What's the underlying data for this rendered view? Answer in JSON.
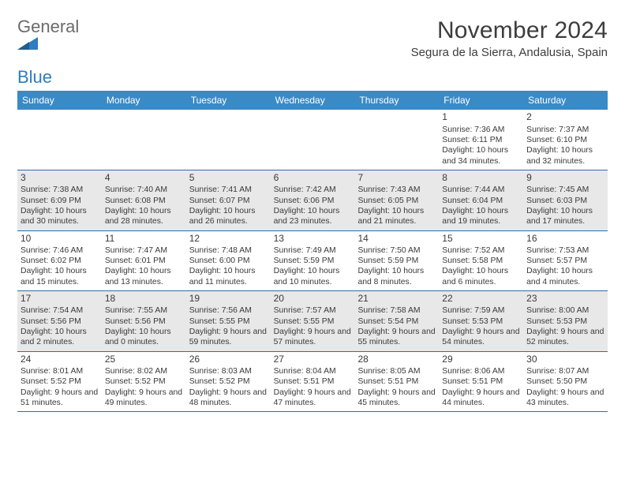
{
  "brand": {
    "text_gray": "General",
    "text_blue": "Blue",
    "icon_fill": "#2e7cc2"
  },
  "title": "November 2024",
  "location": "Segura de la Sierra, Andalusia, Spain",
  "colors": {
    "header_bg": "#3a8ac6",
    "header_text": "#ffffff",
    "border": "#2e6ea8",
    "shaded_bg": "#e8e8e8",
    "text": "#3a3a3a",
    "page_bg": "#ffffff"
  },
  "layout": {
    "columns": 7,
    "rows": 5,
    "first_weekday_index": 5,
    "days_in_month": 30,
    "day_fontsize": 12,
    "detail_fontsize": 10.4
  },
  "weekdays": [
    "Sunday",
    "Monday",
    "Tuesday",
    "Wednesday",
    "Thursday",
    "Friday",
    "Saturday"
  ],
  "days": [
    {
      "n": 1,
      "sunrise": "7:36 AM",
      "sunset": "6:11 PM",
      "daylight": "10 hours and 34 minutes."
    },
    {
      "n": 2,
      "sunrise": "7:37 AM",
      "sunset": "6:10 PM",
      "daylight": "10 hours and 32 minutes."
    },
    {
      "n": 3,
      "sunrise": "7:38 AM",
      "sunset": "6:09 PM",
      "daylight": "10 hours and 30 minutes."
    },
    {
      "n": 4,
      "sunrise": "7:40 AM",
      "sunset": "6:08 PM",
      "daylight": "10 hours and 28 minutes."
    },
    {
      "n": 5,
      "sunrise": "7:41 AM",
      "sunset": "6:07 PM",
      "daylight": "10 hours and 26 minutes."
    },
    {
      "n": 6,
      "sunrise": "7:42 AM",
      "sunset": "6:06 PM",
      "daylight": "10 hours and 23 minutes."
    },
    {
      "n": 7,
      "sunrise": "7:43 AM",
      "sunset": "6:05 PM",
      "daylight": "10 hours and 21 minutes."
    },
    {
      "n": 8,
      "sunrise": "7:44 AM",
      "sunset": "6:04 PM",
      "daylight": "10 hours and 19 minutes."
    },
    {
      "n": 9,
      "sunrise": "7:45 AM",
      "sunset": "6:03 PM",
      "daylight": "10 hours and 17 minutes."
    },
    {
      "n": 10,
      "sunrise": "7:46 AM",
      "sunset": "6:02 PM",
      "daylight": "10 hours and 15 minutes."
    },
    {
      "n": 11,
      "sunrise": "7:47 AM",
      "sunset": "6:01 PM",
      "daylight": "10 hours and 13 minutes."
    },
    {
      "n": 12,
      "sunrise": "7:48 AM",
      "sunset": "6:00 PM",
      "daylight": "10 hours and 11 minutes."
    },
    {
      "n": 13,
      "sunrise": "7:49 AM",
      "sunset": "5:59 PM",
      "daylight": "10 hours and 10 minutes."
    },
    {
      "n": 14,
      "sunrise": "7:50 AM",
      "sunset": "5:59 PM",
      "daylight": "10 hours and 8 minutes."
    },
    {
      "n": 15,
      "sunrise": "7:52 AM",
      "sunset": "5:58 PM",
      "daylight": "10 hours and 6 minutes."
    },
    {
      "n": 16,
      "sunrise": "7:53 AM",
      "sunset": "5:57 PM",
      "daylight": "10 hours and 4 minutes."
    },
    {
      "n": 17,
      "sunrise": "7:54 AM",
      "sunset": "5:56 PM",
      "daylight": "10 hours and 2 minutes."
    },
    {
      "n": 18,
      "sunrise": "7:55 AM",
      "sunset": "5:56 PM",
      "daylight": "10 hours and 0 minutes."
    },
    {
      "n": 19,
      "sunrise": "7:56 AM",
      "sunset": "5:55 PM",
      "daylight": "9 hours and 59 minutes."
    },
    {
      "n": 20,
      "sunrise": "7:57 AM",
      "sunset": "5:55 PM",
      "daylight": "9 hours and 57 minutes."
    },
    {
      "n": 21,
      "sunrise": "7:58 AM",
      "sunset": "5:54 PM",
      "daylight": "9 hours and 55 minutes."
    },
    {
      "n": 22,
      "sunrise": "7:59 AM",
      "sunset": "5:53 PM",
      "daylight": "9 hours and 54 minutes."
    },
    {
      "n": 23,
      "sunrise": "8:00 AM",
      "sunset": "5:53 PM",
      "daylight": "9 hours and 52 minutes."
    },
    {
      "n": 24,
      "sunrise": "8:01 AM",
      "sunset": "5:52 PM",
      "daylight": "9 hours and 51 minutes."
    },
    {
      "n": 25,
      "sunrise": "8:02 AM",
      "sunset": "5:52 PM",
      "daylight": "9 hours and 49 minutes."
    },
    {
      "n": 26,
      "sunrise": "8:03 AM",
      "sunset": "5:52 PM",
      "daylight": "9 hours and 48 minutes."
    },
    {
      "n": 27,
      "sunrise": "8:04 AM",
      "sunset": "5:51 PM",
      "daylight": "9 hours and 47 minutes."
    },
    {
      "n": 28,
      "sunrise": "8:05 AM",
      "sunset": "5:51 PM",
      "daylight": "9 hours and 45 minutes."
    },
    {
      "n": 29,
      "sunrise": "8:06 AM",
      "sunset": "5:51 PM",
      "daylight": "9 hours and 44 minutes."
    },
    {
      "n": 30,
      "sunrise": "8:07 AM",
      "sunset": "5:50 PM",
      "daylight": "9 hours and 43 minutes."
    }
  ],
  "labels": {
    "sunrise_prefix": "Sunrise: ",
    "sunset_prefix": "Sunset: ",
    "daylight_prefix": "Daylight: "
  }
}
